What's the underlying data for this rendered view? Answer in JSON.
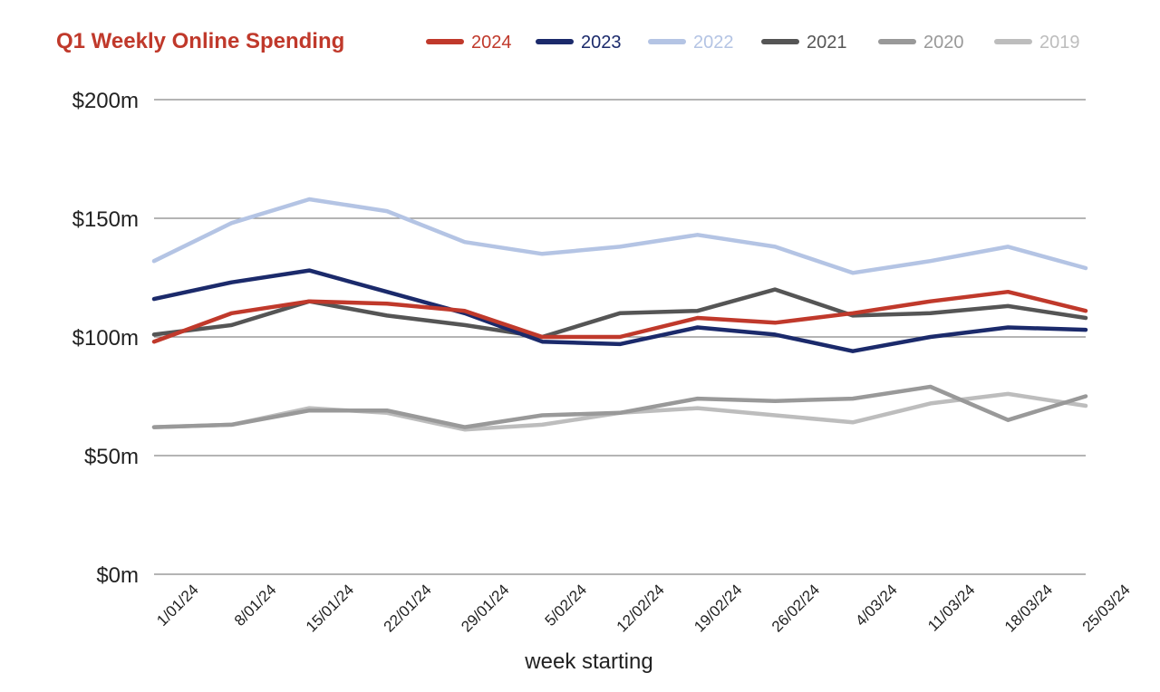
{
  "chart_data": {
    "type": "line",
    "title": "Q1 Weekly Online Spending",
    "title_color": "#C0392B",
    "xlabel": "week starting",
    "ylabel": "",
    "ylim": [
      0,
      200
    ],
    "yticks": [
      0,
      50,
      100,
      150,
      200
    ],
    "ytick_labels": [
      "$0m",
      "$50m",
      "$100m",
      "$150m",
      "$200m"
    ],
    "grid": true,
    "legend_position": "top",
    "categories": [
      "1/01/24",
      "8/01/24",
      "15/01/24",
      "22/01/24",
      "29/01/24",
      "5/02/24",
      "12/02/24",
      "19/02/24",
      "26/02/24",
      "4/03/24",
      "11/03/24",
      "18/03/24",
      "25/03/24"
    ],
    "series": [
      {
        "name": "2019",
        "color": "#BDBDBD",
        "values": [
          62,
          63,
          70,
          68,
          61,
          63,
          68,
          70,
          67,
          64,
          72,
          76,
          71
        ]
      },
      {
        "name": "2020",
        "color": "#999999",
        "values": [
          62,
          63,
          69,
          69,
          62,
          67,
          68,
          74,
          73,
          74,
          79,
          65,
          75
        ]
      },
      {
        "name": "2021",
        "color": "#555555",
        "values": [
          101,
          105,
          115,
          109,
          105,
          100,
          110,
          111,
          120,
          109,
          110,
          113,
          108
        ]
      },
      {
        "name": "2022",
        "color": "#B4C4E4",
        "values": [
          132,
          148,
          158,
          153,
          140,
          135,
          138,
          143,
          138,
          127,
          132,
          138,
          129
        ]
      },
      {
        "name": "2023",
        "color": "#1B2A6B",
        "values": [
          116,
          123,
          128,
          119,
          110,
          98,
          97,
          104,
          101,
          94,
          100,
          104,
          103
        ]
      },
      {
        "name": "2024",
        "color": "#C0392B",
        "values": [
          98,
          110,
          115,
          114,
          111,
          100,
          100,
          108,
          106,
          110,
          115,
          119,
          111
        ]
      }
    ],
    "legend_order": [
      "2024",
      "2023",
      "2022",
      "2021",
      "2020",
      "2019"
    ]
  }
}
